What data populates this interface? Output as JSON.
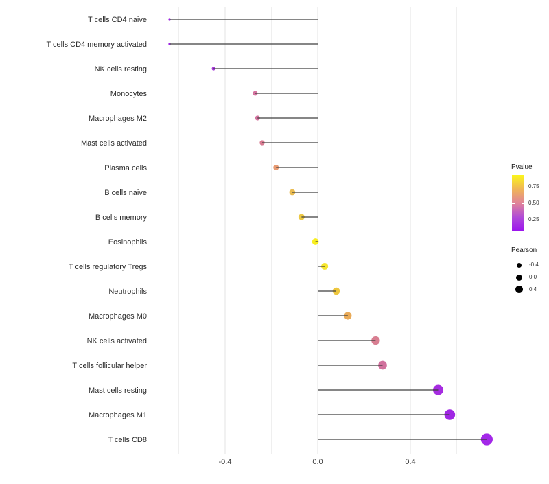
{
  "chart_data": {
    "type": "lollipop",
    "orientation": "horizontal",
    "title": "",
    "xlabel": "",
    "ylabel": "",
    "x_axis": {
      "tick_labels": [
        "-0.4",
        "0.0",
        "0.4"
      ],
      "tick_values": [
        -0.4,
        0.0,
        0.4
      ],
      "minor_tick_values": [
        -0.6,
        -0.2,
        0.2,
        0.6
      ],
      "xlim": [
        -0.71,
        0.8
      ]
    },
    "points": [
      {
        "label": "T cells CD4 naive",
        "pearson": -0.64,
        "color": "#9a22e0",
        "pvalue_est": 0.05
      },
      {
        "label": "T cells CD4 memory activated",
        "pearson": -0.64,
        "color": "#9a22e0",
        "pvalue_est": 0.05
      },
      {
        "label": "NK cells resting",
        "pearson": -0.45,
        "color": "#a438da",
        "pvalue_est": 0.12
      },
      {
        "label": "Monocytes",
        "pearson": -0.27,
        "color": "#d4739f",
        "pvalue_est": 0.45
      },
      {
        "label": "Macrophages M2",
        "pearson": -0.26,
        "color": "#d4739f",
        "pvalue_est": 0.45
      },
      {
        "label": "Mast cells activated",
        "pearson": -0.24,
        "color": "#d87b92",
        "pvalue_est": 0.42
      },
      {
        "label": "Plasma cells",
        "pearson": -0.18,
        "color": "#e79a72",
        "pvalue_est": 0.6
      },
      {
        "label": "B cells naive",
        "pearson": -0.11,
        "color": "#eabc52",
        "pvalue_est": 0.7
      },
      {
        "label": "B cells memory",
        "pearson": -0.07,
        "color": "#ecc843",
        "pvalue_est": 0.75
      },
      {
        "label": "Eosinophils",
        "pearson": -0.01,
        "color": "#f8ee1f",
        "pvalue_est": 0.92
      },
      {
        "label": "T cells regulatory  Tregs",
        "pearson": 0.03,
        "color": "#f5e52d",
        "pvalue_est": 0.85
      },
      {
        "label": "Neutrophils",
        "pearson": 0.08,
        "color": "#edc63d",
        "pvalue_est": 0.74
      },
      {
        "label": "Macrophages M0",
        "pearson": 0.13,
        "color": "#e9aa58",
        "pvalue_est": 0.65
      },
      {
        "label": "NK cells activated",
        "pearson": 0.25,
        "color": "#d87e91",
        "pvalue_est": 0.44
      },
      {
        "label": "T cells follicular helper",
        "pearson": 0.28,
        "color": "#d1719d",
        "pvalue_est": 0.4
      },
      {
        "label": "Mast cells resting",
        "pearson": 0.52,
        "color": "#a62ce1",
        "pvalue_est": 0.1
      },
      {
        "label": "Macrophages M1",
        "pearson": 0.57,
        "color": "#a027e4",
        "pvalue_est": 0.08
      },
      {
        "label": "T cells CD8",
        "pearson": 0.73,
        "color": "#a328e8",
        "pvalue_est": 0.04
      }
    ],
    "style_colors": {
      "stem": "#3e3e3e",
      "grid_major": "#e3e3e3",
      "grid_minor": "#efefef",
      "axis_text": "#3d3d3d"
    },
    "legend": {
      "pvalue": {
        "title": "Pvalue",
        "tick_labels": [
          "0.75",
          "0.50",
          "0.25"
        ],
        "gradient_bottom_to_top": [
          "#9b12ee",
          "#b04bd8",
          "#e0839b",
          "#f0b557",
          "#fbf61b"
        ]
      },
      "pearson": {
        "title": "Pearson",
        "items": [
          {
            "label": "-0.4",
            "value": -0.4
          },
          {
            "label": "0.0",
            "value": 0.0
          },
          {
            "label": "0.4",
            "value": 0.4
          }
        ],
        "dot_color": "#000000"
      }
    },
    "legend_position": "right"
  }
}
